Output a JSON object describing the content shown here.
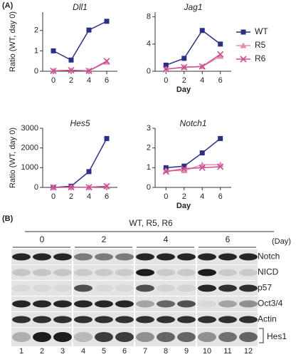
{
  "panel_a_label": "(A)",
  "chart_data": [
    {
      "type": "line",
      "title": "Dll1",
      "y_label": "Ratio (WT, day 0)",
      "x": [
        0,
        2,
        4,
        6
      ],
      "xlim": [
        -1.2,
        7.2
      ],
      "xticks": [
        0,
        2,
        4,
        6
      ],
      "ylim": [
        0,
        2.9
      ],
      "yticks": [
        0,
        1,
        2
      ],
      "series": [
        {
          "color": "#2d2f85",
          "marker": "square",
          "values": [
            1.0,
            0.55,
            2.02,
            2.45
          ]
        },
        {
          "color": "#e68ab8",
          "marker": "triangle",
          "values": [
            0.02,
            0.05,
            0.02,
            0.45
          ]
        },
        {
          "color": "#c8508f",
          "marker": "x",
          "values": [
            0.02,
            0.05,
            0.02,
            0.5
          ]
        }
      ]
    },
    {
      "type": "line",
      "title": "Jag1",
      "x_label": "Day",
      "x": [
        0,
        2,
        4,
        6
      ],
      "xlim": [
        -1.2,
        7.2
      ],
      "xticks": [
        0,
        2,
        4,
        6
      ],
      "ylim": [
        0,
        8.7
      ],
      "yticks": [
        0,
        4,
        8
      ],
      "series": [
        {
          "name": "WT",
          "color": "#2d2f85",
          "marker": "square",
          "values": [
            0.9,
            1.9,
            6.0,
            4.0
          ]
        },
        {
          "name": "R5",
          "color": "#e68ab8",
          "marker": "triangle",
          "values": [
            0.3,
            0.6,
            0.7,
            2.2
          ]
        },
        {
          "name": "R6",
          "color": "#c8508f",
          "marker": "x",
          "values": [
            0.3,
            0.6,
            0.7,
            2.5
          ]
        }
      ]
    },
    {
      "type": "line",
      "title": "Hes5",
      "y_label": "Ratio (WT, day 0)",
      "x": [
        0,
        2,
        4,
        6
      ],
      "xlim": [
        -1.2,
        7.2
      ],
      "xticks": [
        0,
        2,
        4,
        6
      ],
      "ylim": [
        0,
        3000
      ],
      "yticks": [
        0,
        1000,
        2000,
        3000
      ],
      "series": [
        {
          "color": "#2d2f85",
          "marker": "square",
          "values": [
            0,
            60,
            800,
            2480
          ]
        },
        {
          "color": "#e68ab8",
          "marker": "triangle",
          "values": [
            0,
            10,
            10,
            50
          ]
        },
        {
          "color": "#c8508f",
          "marker": "x",
          "values": [
            0,
            10,
            10,
            60
          ]
        }
      ]
    },
    {
      "type": "line",
      "title": "Notch1",
      "x_label": "Day",
      "x": [
        0,
        2,
        4,
        6
      ],
      "xlim": [
        -1.2,
        7.2
      ],
      "xticks": [
        0,
        2,
        4,
        6
      ],
      "ylim": [
        0,
        3
      ],
      "yticks": [
        0,
        1,
        2,
        3
      ],
      "series": [
        {
          "color": "#2d2f85",
          "marker": "square",
          "values": [
            1.0,
            1.08,
            1.75,
            2.48
          ]
        },
        {
          "color": "#e68ab8",
          "marker": "triangle",
          "values": [
            0.85,
            0.85,
            1.15,
            1.15
          ]
        },
        {
          "color": "#c8508f",
          "marker": "x",
          "values": [
            0.8,
            0.95,
            1.0,
            1.05
          ]
        }
      ]
    }
  ],
  "blot": {
    "panel_label": "(B)",
    "samples": "WT, R5, R6",
    "days": [
      "0",
      "2",
      "4",
      "6"
    ],
    "day_unit": "(Day)",
    "rows": [
      "Notch",
      "NICD",
      "p57",
      "Oct3/4",
      "Actin",
      "Hes1"
    ],
    "lanes": [
      "1",
      "2",
      "3",
      "4",
      "5",
      "6",
      "7",
      "8",
      "9",
      "10",
      "11",
      "12"
    ]
  }
}
